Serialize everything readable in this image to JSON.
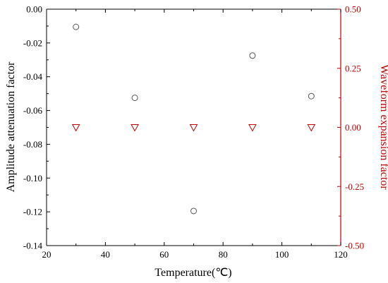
{
  "chart_data": {
    "type": "scatter",
    "xlabel": "Temperature(℃)",
    "ylabel_left": "Amplitude attenuation factor",
    "ylabel_right": "Waveform expansion factor",
    "xlim": [
      20,
      120
    ],
    "ylim_left": [
      -0.14,
      0.0
    ],
    "ylim_right": [
      -0.5,
      0.5
    ],
    "x_ticks": [
      20,
      40,
      60,
      80,
      100,
      120
    ],
    "y_ticks_left": [
      0.0,
      -0.02,
      -0.04,
      -0.06,
      -0.08,
      -0.1,
      -0.12,
      -0.14
    ],
    "y_ticks_right": [
      0.5,
      0.25,
      0.0,
      -0.25,
      -0.5
    ],
    "x_tick_labels": [
      "20",
      "40",
      "60",
      "80",
      "100",
      "120"
    ],
    "y_tick_labels_left": [
      "0.00",
      "-0.02",
      "-0.04",
      "-0.06",
      "-0.08",
      "-0.10",
      "-0.12",
      "-0.14"
    ],
    "y_tick_labels_right": [
      "0.50",
      "0.25",
      "0.00",
      "-0.25",
      "-0.50"
    ],
    "grid": false,
    "series": [
      {
        "axis": "left",
        "marker": "circle",
        "color": "#555555",
        "x": [
          30,
          50,
          70,
          90,
          110
        ],
        "y": [
          -0.0105,
          -0.0525,
          -0.1195,
          -0.0275,
          -0.0515
        ]
      },
      {
        "axis": "right",
        "marker": "triangle-down",
        "color": "#c00000",
        "x": [
          30,
          50,
          70,
          90,
          110
        ],
        "y": [
          0.0,
          0.0,
          0.0,
          0.0,
          0.0
        ]
      }
    ],
    "colors": {
      "left_axis": "#000000",
      "right_axis": "#c00000"
    }
  }
}
